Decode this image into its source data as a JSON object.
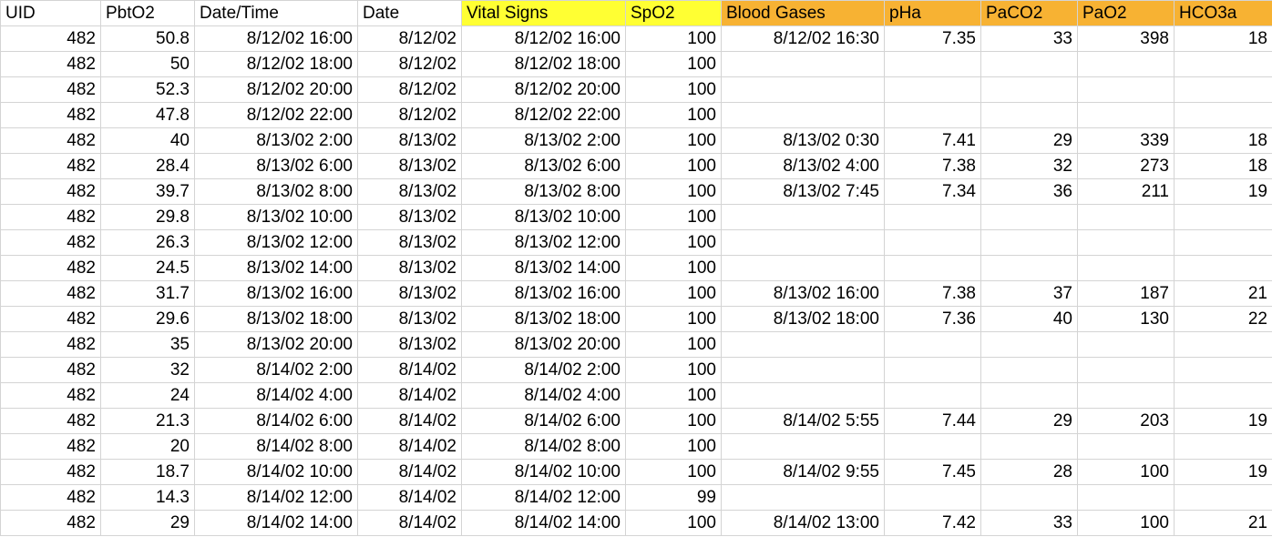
{
  "header": {
    "columns": [
      {
        "label": "UID",
        "highlight": "none"
      },
      {
        "label": "PbtO2",
        "highlight": "none"
      },
      {
        "label": "Date/Time",
        "highlight": "none"
      },
      {
        "label": "Date",
        "highlight": "none"
      },
      {
        "label": "Vital Signs",
        "highlight": "yellow"
      },
      {
        "label": "SpO2",
        "highlight": "yellow"
      },
      {
        "label": "Blood Gases",
        "highlight": "orange"
      },
      {
        "label": "pHa",
        "highlight": "orange"
      },
      {
        "label": "PaCO2",
        "highlight": "orange"
      },
      {
        "label": "PaO2",
        "highlight": "orange"
      },
      {
        "label": "HCO3a",
        "highlight": "orange"
      }
    ]
  },
  "colors": {
    "highlight_yellow": "#ffff33",
    "highlight_orange": "#f7b233",
    "grid_line": "#d4d4d4"
  },
  "rows": [
    [
      "482",
      "50.8",
      "8/12/02 16:00",
      "8/12/02",
      "8/12/02 16:00",
      "100",
      "8/12/02 16:30",
      "7.35",
      "33",
      "398",
      "18"
    ],
    [
      "482",
      "50",
      "8/12/02 18:00",
      "8/12/02",
      "8/12/02 18:00",
      "100",
      "",
      "",
      "",
      "",
      ""
    ],
    [
      "482",
      "52.3",
      "8/12/02 20:00",
      "8/12/02",
      "8/12/02 20:00",
      "100",
      "",
      "",
      "",
      "",
      ""
    ],
    [
      "482",
      "47.8",
      "8/12/02 22:00",
      "8/12/02",
      "8/12/02 22:00",
      "100",
      "",
      "",
      "",
      "",
      ""
    ],
    [
      "482",
      "40",
      "8/13/02 2:00",
      "8/13/02",
      "8/13/02 2:00",
      "100",
      "8/13/02 0:30",
      "7.41",
      "29",
      "339",
      "18"
    ],
    [
      "482",
      "28.4",
      "8/13/02 6:00",
      "8/13/02",
      "8/13/02 6:00",
      "100",
      "8/13/02 4:00",
      "7.38",
      "32",
      "273",
      "18"
    ],
    [
      "482",
      "39.7",
      "8/13/02 8:00",
      "8/13/02",
      "8/13/02 8:00",
      "100",
      "8/13/02 7:45",
      "7.34",
      "36",
      "211",
      "19"
    ],
    [
      "482",
      "29.8",
      "8/13/02 10:00",
      "8/13/02",
      "8/13/02 10:00",
      "100",
      "",
      "",
      "",
      "",
      ""
    ],
    [
      "482",
      "26.3",
      "8/13/02 12:00",
      "8/13/02",
      "8/13/02 12:00",
      "100",
      "",
      "",
      "",
      "",
      ""
    ],
    [
      "482",
      "24.5",
      "8/13/02 14:00",
      "8/13/02",
      "8/13/02 14:00",
      "100",
      "",
      "",
      "",
      "",
      ""
    ],
    [
      "482",
      "31.7",
      "8/13/02 16:00",
      "8/13/02",
      "8/13/02 16:00",
      "100",
      "8/13/02 16:00",
      "7.38",
      "37",
      "187",
      "21"
    ],
    [
      "482",
      "29.6",
      "8/13/02 18:00",
      "8/13/02",
      "8/13/02 18:00",
      "100",
      "8/13/02 18:00",
      "7.36",
      "40",
      "130",
      "22"
    ],
    [
      "482",
      "35",
      "8/13/02 20:00",
      "8/13/02",
      "8/13/02 20:00",
      "100",
      "",
      "",
      "",
      "",
      ""
    ],
    [
      "482",
      "32",
      "8/14/02 2:00",
      "8/14/02",
      "8/14/02 2:00",
      "100",
      "",
      "",
      "",
      "",
      ""
    ],
    [
      "482",
      "24",
      "8/14/02 4:00",
      "8/14/02",
      "8/14/02 4:00",
      "100",
      "",
      "",
      "",
      "",
      ""
    ],
    [
      "482",
      "21.3",
      "8/14/02 6:00",
      "8/14/02",
      "8/14/02 6:00",
      "100",
      "8/14/02 5:55",
      "7.44",
      "29",
      "203",
      "19"
    ],
    [
      "482",
      "20",
      "8/14/02 8:00",
      "8/14/02",
      "8/14/02 8:00",
      "100",
      "",
      "",
      "",
      "",
      ""
    ],
    [
      "482",
      "18.7",
      "8/14/02 10:00",
      "8/14/02",
      "8/14/02 10:00",
      "100",
      "8/14/02 9:55",
      "7.45",
      "28",
      "100",
      "19"
    ],
    [
      "482",
      "14.3",
      "8/14/02 12:00",
      "8/14/02",
      "8/14/02 12:00",
      "99",
      "",
      "",
      "",
      "",
      ""
    ],
    [
      "482",
      "29",
      "8/14/02 14:00",
      "8/14/02",
      "8/14/02 14:00",
      "100",
      "8/14/02 13:00",
      "7.42",
      "33",
      "100",
      "21"
    ]
  ]
}
